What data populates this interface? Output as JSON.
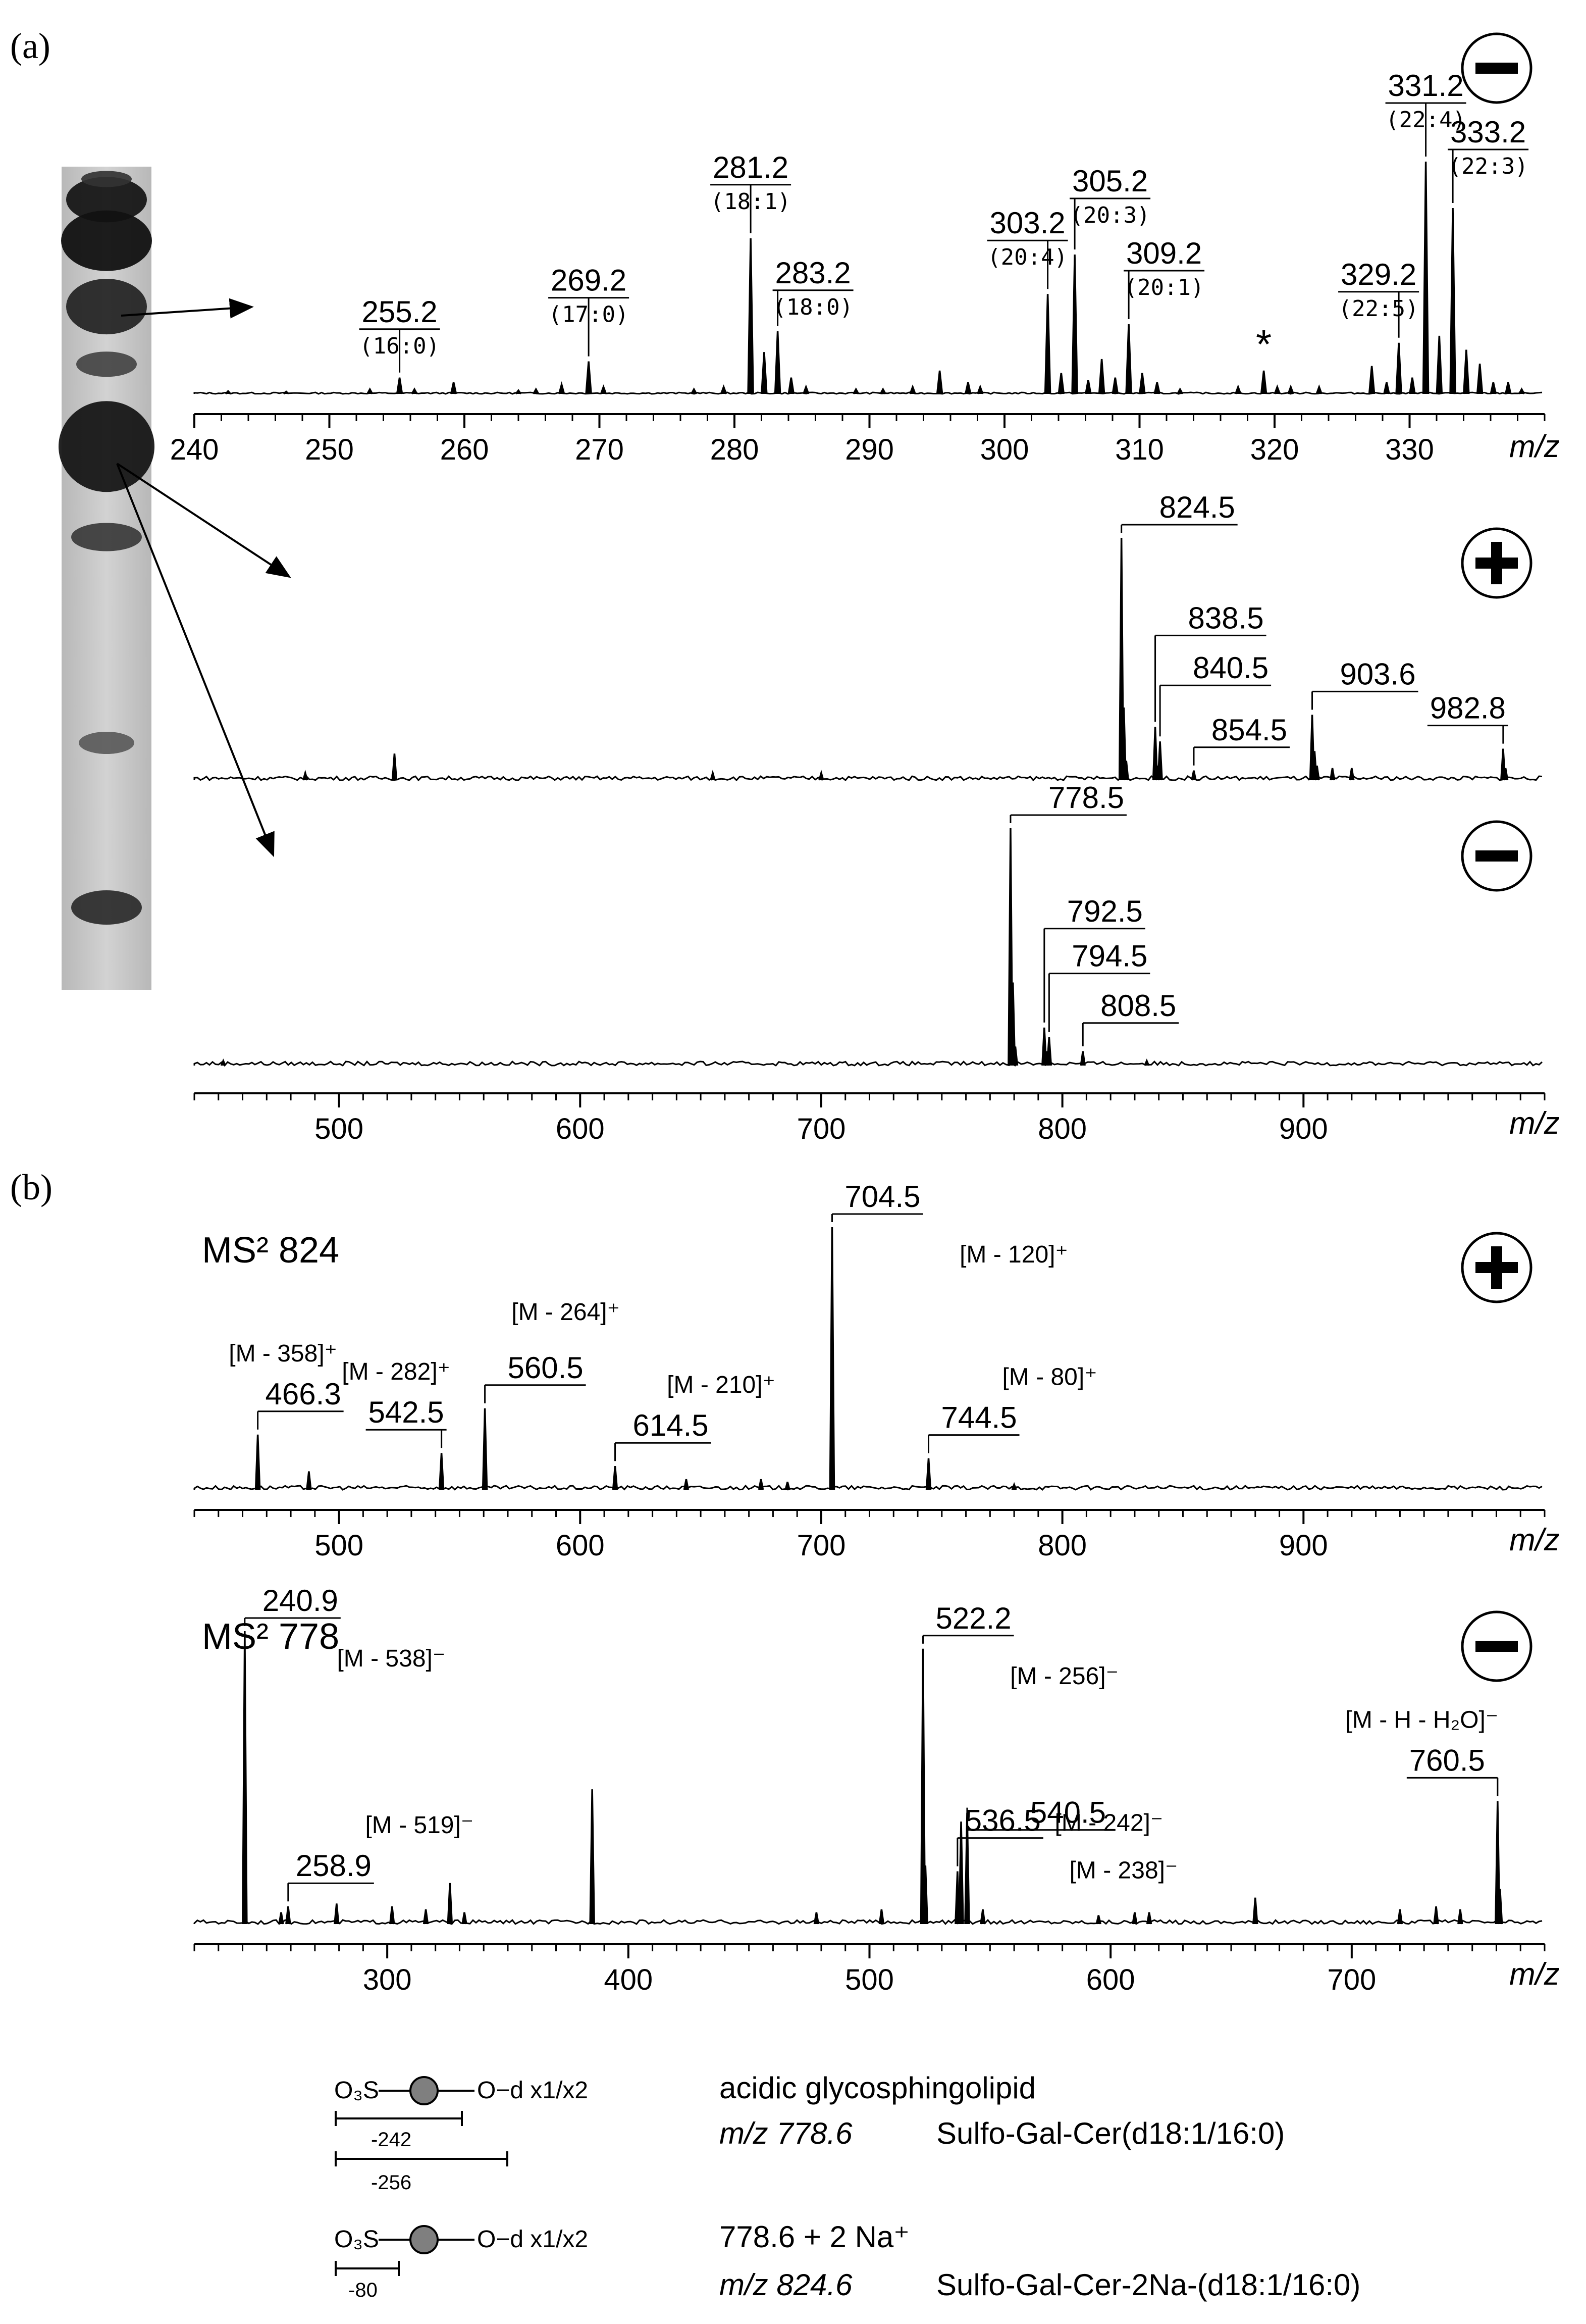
{
  "panel_labels": {
    "a": "(a)",
    "b": "(b)"
  },
  "axis_unit": "m/z",
  "polarity_symbols": {
    "negative": "−",
    "positive": "+"
  },
  "tlc": {
    "bands": [
      0.1,
      0.3,
      0.55,
      0.66,
      0.76,
      0.83,
      0.91,
      0.96,
      0.985
    ]
  },
  "chart_data": [
    {
      "id": "fatty-acid-spectrum",
      "type": "line",
      "polarity": "negative",
      "xlim": [
        240,
        340
      ],
      "xticks": [
        240,
        250,
        260,
        270,
        280,
        290,
        300,
        310,
        320,
        330
      ],
      "xlabel": "m/z",
      "peaks": [
        {
          "x": 242.5,
          "y": 0.012
        },
        {
          "x": 246.8,
          "y": 0.01
        },
        {
          "x": 253.0,
          "y": 0.02
        },
        {
          "x": 255.2,
          "y": 0.07
        },
        {
          "x": 256.3,
          "y": 0.02
        },
        {
          "x": 259.2,
          "y": 0.05
        },
        {
          "x": 264.0,
          "y": 0.015
        },
        {
          "x": 265.3,
          "y": 0.02
        },
        {
          "x": 267.2,
          "y": 0.04
        },
        {
          "x": 269.2,
          "y": 0.14
        },
        {
          "x": 270.3,
          "y": 0.03
        },
        {
          "x": 277.0,
          "y": 0.02
        },
        {
          "x": 279.2,
          "y": 0.03
        },
        {
          "x": 281.2,
          "y": 0.67
        },
        {
          "x": 282.2,
          "y": 0.18
        },
        {
          "x": 283.2,
          "y": 0.27
        },
        {
          "x": 284.2,
          "y": 0.07
        },
        {
          "x": 285.3,
          "y": 0.03
        },
        {
          "x": 289.0,
          "y": 0.02
        },
        {
          "x": 291.0,
          "y": 0.02
        },
        {
          "x": 293.2,
          "y": 0.03
        },
        {
          "x": 295.2,
          "y": 0.1
        },
        {
          "x": 297.3,
          "y": 0.05
        },
        {
          "x": 298.2,
          "y": 0.03
        },
        {
          "x": 303.2,
          "y": 0.43
        },
        {
          "x": 304.2,
          "y": 0.09
        },
        {
          "x": 305.2,
          "y": 0.6
        },
        {
          "x": 306.2,
          "y": 0.06
        },
        {
          "x": 307.2,
          "y": 0.15
        },
        {
          "x": 308.2,
          "y": 0.07
        },
        {
          "x": 309.2,
          "y": 0.3
        },
        {
          "x": 310.2,
          "y": 0.09
        },
        {
          "x": 311.3,
          "y": 0.05
        },
        {
          "x": 313.0,
          "y": 0.02
        },
        {
          "x": 317.3,
          "y": 0.03
        },
        {
          "x": 319.2,
          "y": 0.1
        },
        {
          "x": 320.2,
          "y": 0.03
        },
        {
          "x": 321.2,
          "y": 0.03
        },
        {
          "x": 323.3,
          "y": 0.03
        },
        {
          "x": 327.2,
          "y": 0.12
        },
        {
          "x": 328.3,
          "y": 0.05
        },
        {
          "x": 329.2,
          "y": 0.22
        },
        {
          "x": 330.2,
          "y": 0.07
        },
        {
          "x": 331.2,
          "y": 1.0
        },
        {
          "x": 332.2,
          "y": 0.25
        },
        {
          "x": 333.2,
          "y": 0.8
        },
        {
          "x": 334.2,
          "y": 0.19
        },
        {
          "x": 335.2,
          "y": 0.13
        },
        {
          "x": 336.2,
          "y": 0.05
        },
        {
          "x": 337.3,
          "y": 0.05
        },
        {
          "x": 338.3,
          "y": 0.02
        }
      ],
      "labels": [
        {
          "x": 255.2,
          "text": "255.2",
          "sub": "(16:0)"
        },
        {
          "x": 269.2,
          "text": "269.2",
          "sub": "(17:0)"
        },
        {
          "x": 281.2,
          "text": "281.2",
          "sub": "(18:1)"
        },
        {
          "x": 283.2,
          "text": "283.2",
          "sub": "(18:0)"
        },
        {
          "x": 303.2,
          "text": "303.2",
          "sub": "(20:4)"
        },
        {
          "x": 305.2,
          "text": "305.2",
          "sub": "(20:3)"
        },
        {
          "x": 309.2,
          "text": "309.2",
          "sub": "(20:1)"
        },
        {
          "x": 329.2,
          "text": "329.2",
          "sub": "(22:5)"
        },
        {
          "x": 331.2,
          "text": "331.2",
          "sub": "(22:4)"
        },
        {
          "x": 333.2,
          "text": "333.2",
          "sub": "(22:3)"
        }
      ],
      "annotations": [
        {
          "x": 319.2,
          "text": "*"
        }
      ]
    },
    {
      "id": "positive-ms1-spectrum",
      "type": "line",
      "polarity": "positive",
      "xlim": [
        440,
        1000
      ],
      "peaks": [
        {
          "x": 523,
          "y": 0.11
        },
        {
          "x": 486,
          "y": 0.03
        },
        {
          "x": 655,
          "y": 0.03
        },
        {
          "x": 700,
          "y": 0.03
        },
        {
          "x": 824.5,
          "y": 1.0
        },
        {
          "x": 825.5,
          "y": 0.3
        },
        {
          "x": 826.5,
          "y": 0.08
        },
        {
          "x": 838.5,
          "y": 0.22
        },
        {
          "x": 840.5,
          "y": 0.16
        },
        {
          "x": 839.5,
          "y": 0.06
        },
        {
          "x": 854.5,
          "y": 0.04
        },
        {
          "x": 903.6,
          "y": 0.27
        },
        {
          "x": 904.6,
          "y": 0.12
        },
        {
          "x": 905.6,
          "y": 0.06
        },
        {
          "x": 912,
          "y": 0.05
        },
        {
          "x": 920,
          "y": 0.05
        },
        {
          "x": 982.8,
          "y": 0.13
        },
        {
          "x": 983.8,
          "y": 0.05
        }
      ],
      "labels": [
        {
          "x": 824.5,
          "text": "824.5"
        },
        {
          "x": 838.5,
          "text": "838.5"
        },
        {
          "x": 840.5,
          "text": "840.5"
        },
        {
          "x": 854.5,
          "text": "854.5"
        },
        {
          "x": 903.6,
          "text": "903.6"
        },
        {
          "x": 982.8,
          "text": "982.8"
        }
      ]
    },
    {
      "id": "negative-ms1-spectrum",
      "type": "line",
      "polarity": "negative",
      "xlim": [
        440,
        1000
      ],
      "xticks": [
        500,
        600,
        700,
        800,
        900
      ],
      "xlabel": "m/z",
      "peaks": [
        {
          "x": 452,
          "y": 0.02
        },
        {
          "x": 778.5,
          "y": 1.0
        },
        {
          "x": 779.5,
          "y": 0.35
        },
        {
          "x": 780.5,
          "y": 0.08
        },
        {
          "x": 792.5,
          "y": 0.16
        },
        {
          "x": 793.5,
          "y": 0.06
        },
        {
          "x": 794.5,
          "y": 0.12
        },
        {
          "x": 808.5,
          "y": 0.06
        },
        {
          "x": 835,
          "y": 0.02
        }
      ],
      "labels": [
        {
          "x": 778.5,
          "text": "778.5"
        },
        {
          "x": 792.5,
          "text": "792.5"
        },
        {
          "x": 794.5,
          "text": "794.5"
        },
        {
          "x": 808.5,
          "text": "808.5"
        }
      ]
    },
    {
      "id": "ms2-824-spectrum",
      "type": "line",
      "title": "MS² 824",
      "polarity": "positive",
      "xlim": [
        440,
        1000
      ],
      "xticks": [
        500,
        600,
        700,
        800,
        900
      ],
      "xlabel": "m/z",
      "peaks": [
        {
          "x": 466.3,
          "y": 0.21
        },
        {
          "x": 487.5,
          "y": 0.07
        },
        {
          "x": 542.5,
          "y": 0.14
        },
        {
          "x": 560.5,
          "y": 0.31
        },
        {
          "x": 614.5,
          "y": 0.09
        },
        {
          "x": 644,
          "y": 0.04
        },
        {
          "x": 675,
          "y": 0.04
        },
        {
          "x": 686,
          "y": 0.03
        },
        {
          "x": 704.5,
          "y": 1.0
        },
        {
          "x": 744.5,
          "y": 0.12
        },
        {
          "x": 780,
          "y": 0.02
        }
      ],
      "labels": [
        {
          "x": 466.3,
          "text": "466.3",
          "ion": "[M - 358]⁺"
        },
        {
          "x": 542.5,
          "text": "542.5",
          "ion": "[M - 282]⁺"
        },
        {
          "x": 560.5,
          "text": "560.5",
          "ion": "[M - 264]⁺"
        },
        {
          "x": 614.5,
          "text": "614.5",
          "ion": "[M - 210]⁺"
        },
        {
          "x": 704.5,
          "text": "704.5",
          "ion": "[M - 120]⁺"
        },
        {
          "x": 744.5,
          "text": "744.5",
          "ion": "[M - 80]⁺"
        }
      ]
    },
    {
      "id": "ms2-778-spectrum",
      "type": "line",
      "title": "MS² 778",
      "polarity": "negative",
      "xlim": [
        220,
        780
      ],
      "xticks": [
        300,
        400,
        500,
        600,
        700
      ],
      "xlabel": "m/z",
      "peaks": [
        {
          "x": 240.9,
          "y": 1.0
        },
        {
          "x": 256,
          "y": 0.04
        },
        {
          "x": 258.9,
          "y": 0.06
        },
        {
          "x": 279,
          "y": 0.07
        },
        {
          "x": 302,
          "y": 0.06
        },
        {
          "x": 316,
          "y": 0.05
        },
        {
          "x": 326,
          "y": 0.14
        },
        {
          "x": 332,
          "y": 0.04
        },
        {
          "x": 385,
          "y": 0.46
        },
        {
          "x": 478,
          "y": 0.04
        },
        {
          "x": 505,
          "y": 0.05
        },
        {
          "x": 522.2,
          "y": 0.94
        },
        {
          "x": 523.2,
          "y": 0.2
        },
        {
          "x": 536.5,
          "y": 0.18
        },
        {
          "x": 538,
          "y": 0.35
        },
        {
          "x": 540.5,
          "y": 0.38
        },
        {
          "x": 547,
          "y": 0.05
        },
        {
          "x": 595,
          "y": 0.03
        },
        {
          "x": 610,
          "y": 0.04
        },
        {
          "x": 616,
          "y": 0.04
        },
        {
          "x": 660,
          "y": 0.09
        },
        {
          "x": 720,
          "y": 0.05
        },
        {
          "x": 735,
          "y": 0.06
        },
        {
          "x": 745,
          "y": 0.05
        },
        {
          "x": 760.5,
          "y": 0.42
        },
        {
          "x": 761.5,
          "y": 0.12
        }
      ],
      "labels": [
        {
          "x": 240.9,
          "text": "240.9",
          "ion": "[M - 538]⁻"
        },
        {
          "x": 258.9,
          "text": "258.9",
          "ion": "[M - 519]⁻"
        },
        {
          "x": 522.2,
          "text": "522.2",
          "ion": "[M - 256]⁻"
        },
        {
          "x": 536.5,
          "text": "536.5",
          "ion": "[M - 242]⁻"
        },
        {
          "x": 540.5,
          "text": "540.5",
          "ion": "[M - 238]⁻"
        },
        {
          "x": 760.5,
          "text": "760.5",
          "ion": "[M - H - H₂O]⁻"
        }
      ]
    }
  ],
  "legend": {
    "structure1": {
      "so3": "O₃S",
      "cer": "O−d x1/x2",
      "frag1": "-242",
      "frag2": "-256"
    },
    "structure2": {
      "so3": "O₃S",
      "cer": "O−d x1/x2",
      "frag1": "-80"
    },
    "lines": [
      {
        "col1": "acidic glycosphingolipid",
        "col2": ""
      },
      {
        "col1": "m/z 778.6",
        "col2": "Sulfo-Gal-Cer(d18:1/16:0)"
      },
      {
        "col1": "778.6 + 2 Na⁺",
        "col2": ""
      },
      {
        "col1": "m/z 824.6",
        "col2": "Sulfo-Gal-Cer-2Na-(d18:1/16:0)"
      }
    ]
  }
}
